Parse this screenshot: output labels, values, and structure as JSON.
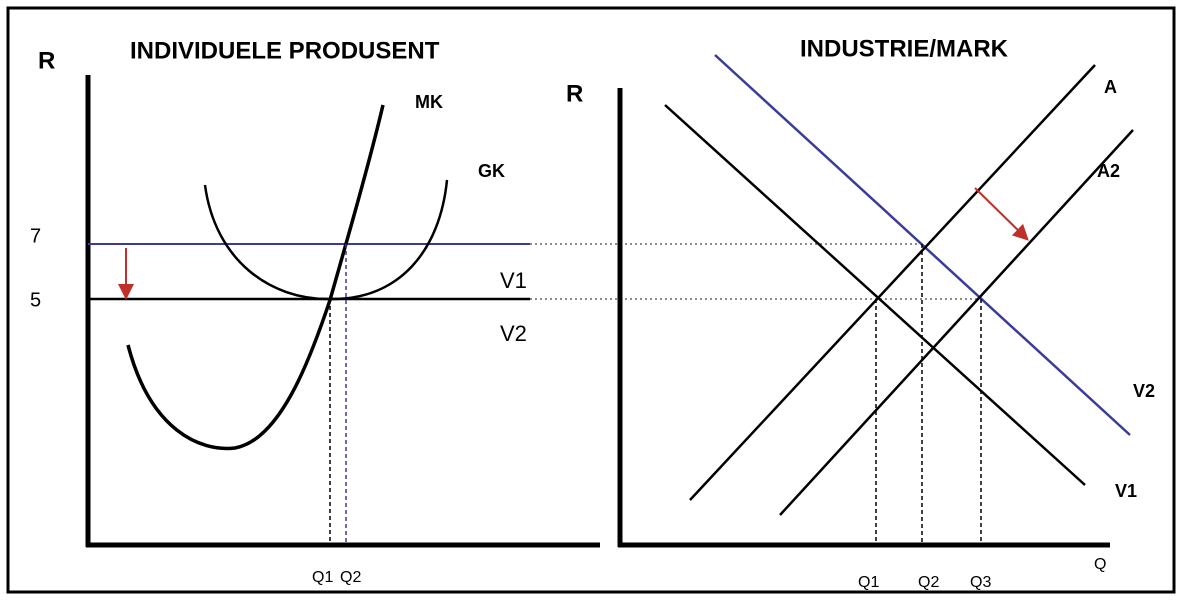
{
  "left": {
    "title": "INDIVIDUELE PRODUSENT",
    "axis_label": "R",
    "curves": {
      "mk": "MK",
      "gk": "GK"
    },
    "price_labels": [
      "7",
      "5"
    ],
    "revenue_labels": [
      "V1",
      "V2"
    ],
    "quantity_labels": [
      "Q1",
      "Q2"
    ]
  },
  "right": {
    "title": "INDUSTRIE/MARK",
    "axis_label": "R",
    "supply_labels": [
      "A",
      "A2"
    ],
    "demand_labels": [
      "V2",
      "V1"
    ],
    "quantity_labels": [
      "Q1",
      "Q2",
      "Q3"
    ],
    "x_axis_label": "Q"
  }
}
